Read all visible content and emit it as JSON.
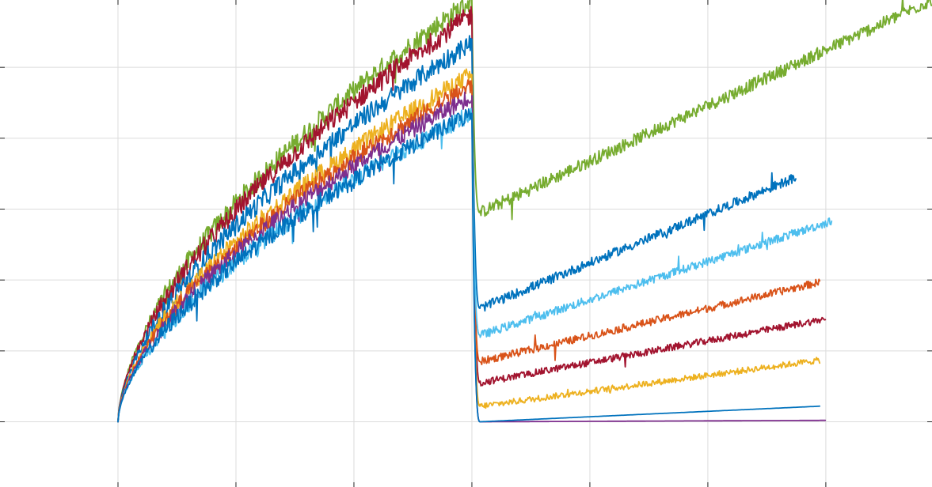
{
  "chart_data": {
    "type": "line",
    "title": "",
    "xlabel": "",
    "ylabel": "",
    "xlim": [
      -1,
      6.9
    ],
    "ylim": [
      -0.92,
      5.95
    ],
    "grid": true,
    "x_ticks": [
      0,
      1,
      2,
      3,
      4,
      5,
      6
    ],
    "y_ticks": [
      0,
      1,
      2,
      3,
      4,
      5
    ],
    "series": [
      {
        "color": "#77AC30",
        "charge": {
          "peak": 5.95
        },
        "relax": {
          "min": 2.95,
          "end_x": 6.9,
          "end_y": 5.95
        }
      },
      {
        "color": "#A2142F",
        "charge": {
          "peak": 5.75
        },
        "relax": {
          "min": 0.55,
          "end_x": 6.0,
          "end_y": 1.45
        }
      },
      {
        "color": "#0072BD",
        "charge": {
          "peak": 5.35
        },
        "relax": {
          "min": 1.6,
          "end_x": 5.75,
          "end_y": 3.45
        }
      },
      {
        "color": "#EDB120",
        "charge": {
          "peak": 4.9
        },
        "relax": {
          "min": 0.22,
          "end_x": 5.95,
          "end_y": 0.87
        }
      },
      {
        "color": "#D95319",
        "charge": {
          "peak": 4.75
        },
        "relax": {
          "min": 0.85,
          "end_x": 5.95,
          "end_y": 1.97
        }
      },
      {
        "color": "#7E2F8E",
        "charge": {
          "peak": 4.6
        },
        "relax": {
          "min": 0.0,
          "end_x": 6.0,
          "end_y": 0.02
        }
      },
      {
        "color": "#4DBEEE",
        "charge": {
          "peak": 4.35
        },
        "relax": {
          "min": 1.22,
          "end_x": 6.05,
          "end_y": 2.83
        }
      },
      {
        "color": "#0072BD",
        "charge": {
          "peak": 4.35
        },
        "relax": {
          "min": 0.0,
          "end_x": 5.95,
          "end_y": 0.22
        }
      }
    ]
  }
}
